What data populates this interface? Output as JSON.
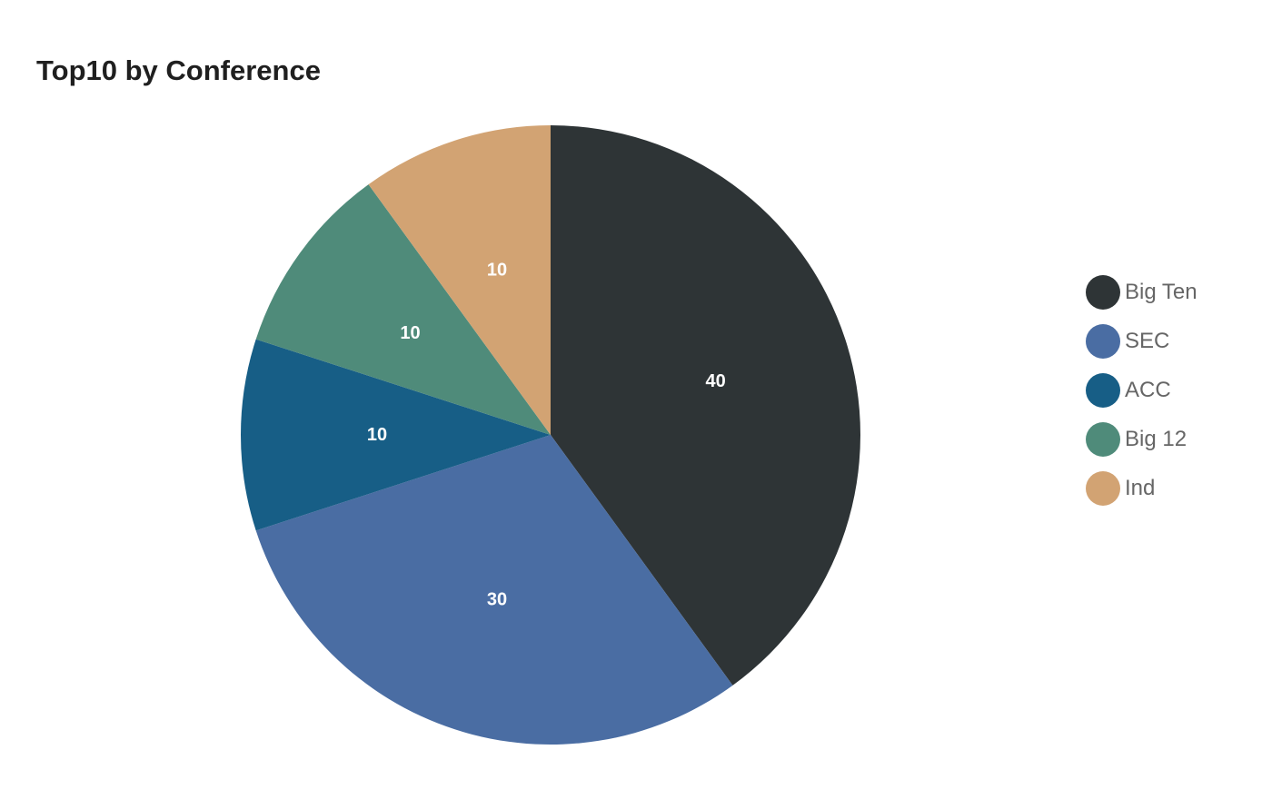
{
  "chart_data": {
    "type": "pie",
    "title": "Top10 by Conference",
    "categories": [
      "Big Ten",
      "SEC",
      "ACC",
      "Big 12",
      "Ind"
    ],
    "values": [
      40,
      30,
      10,
      10,
      10
    ],
    "colors": [
      "#2e3436",
      "#4a6da3",
      "#175e86",
      "#4f8b7a",
      "#d2a373"
    ],
    "start_angle": "12 o'clock, clockwise",
    "legend_placement": "right"
  }
}
